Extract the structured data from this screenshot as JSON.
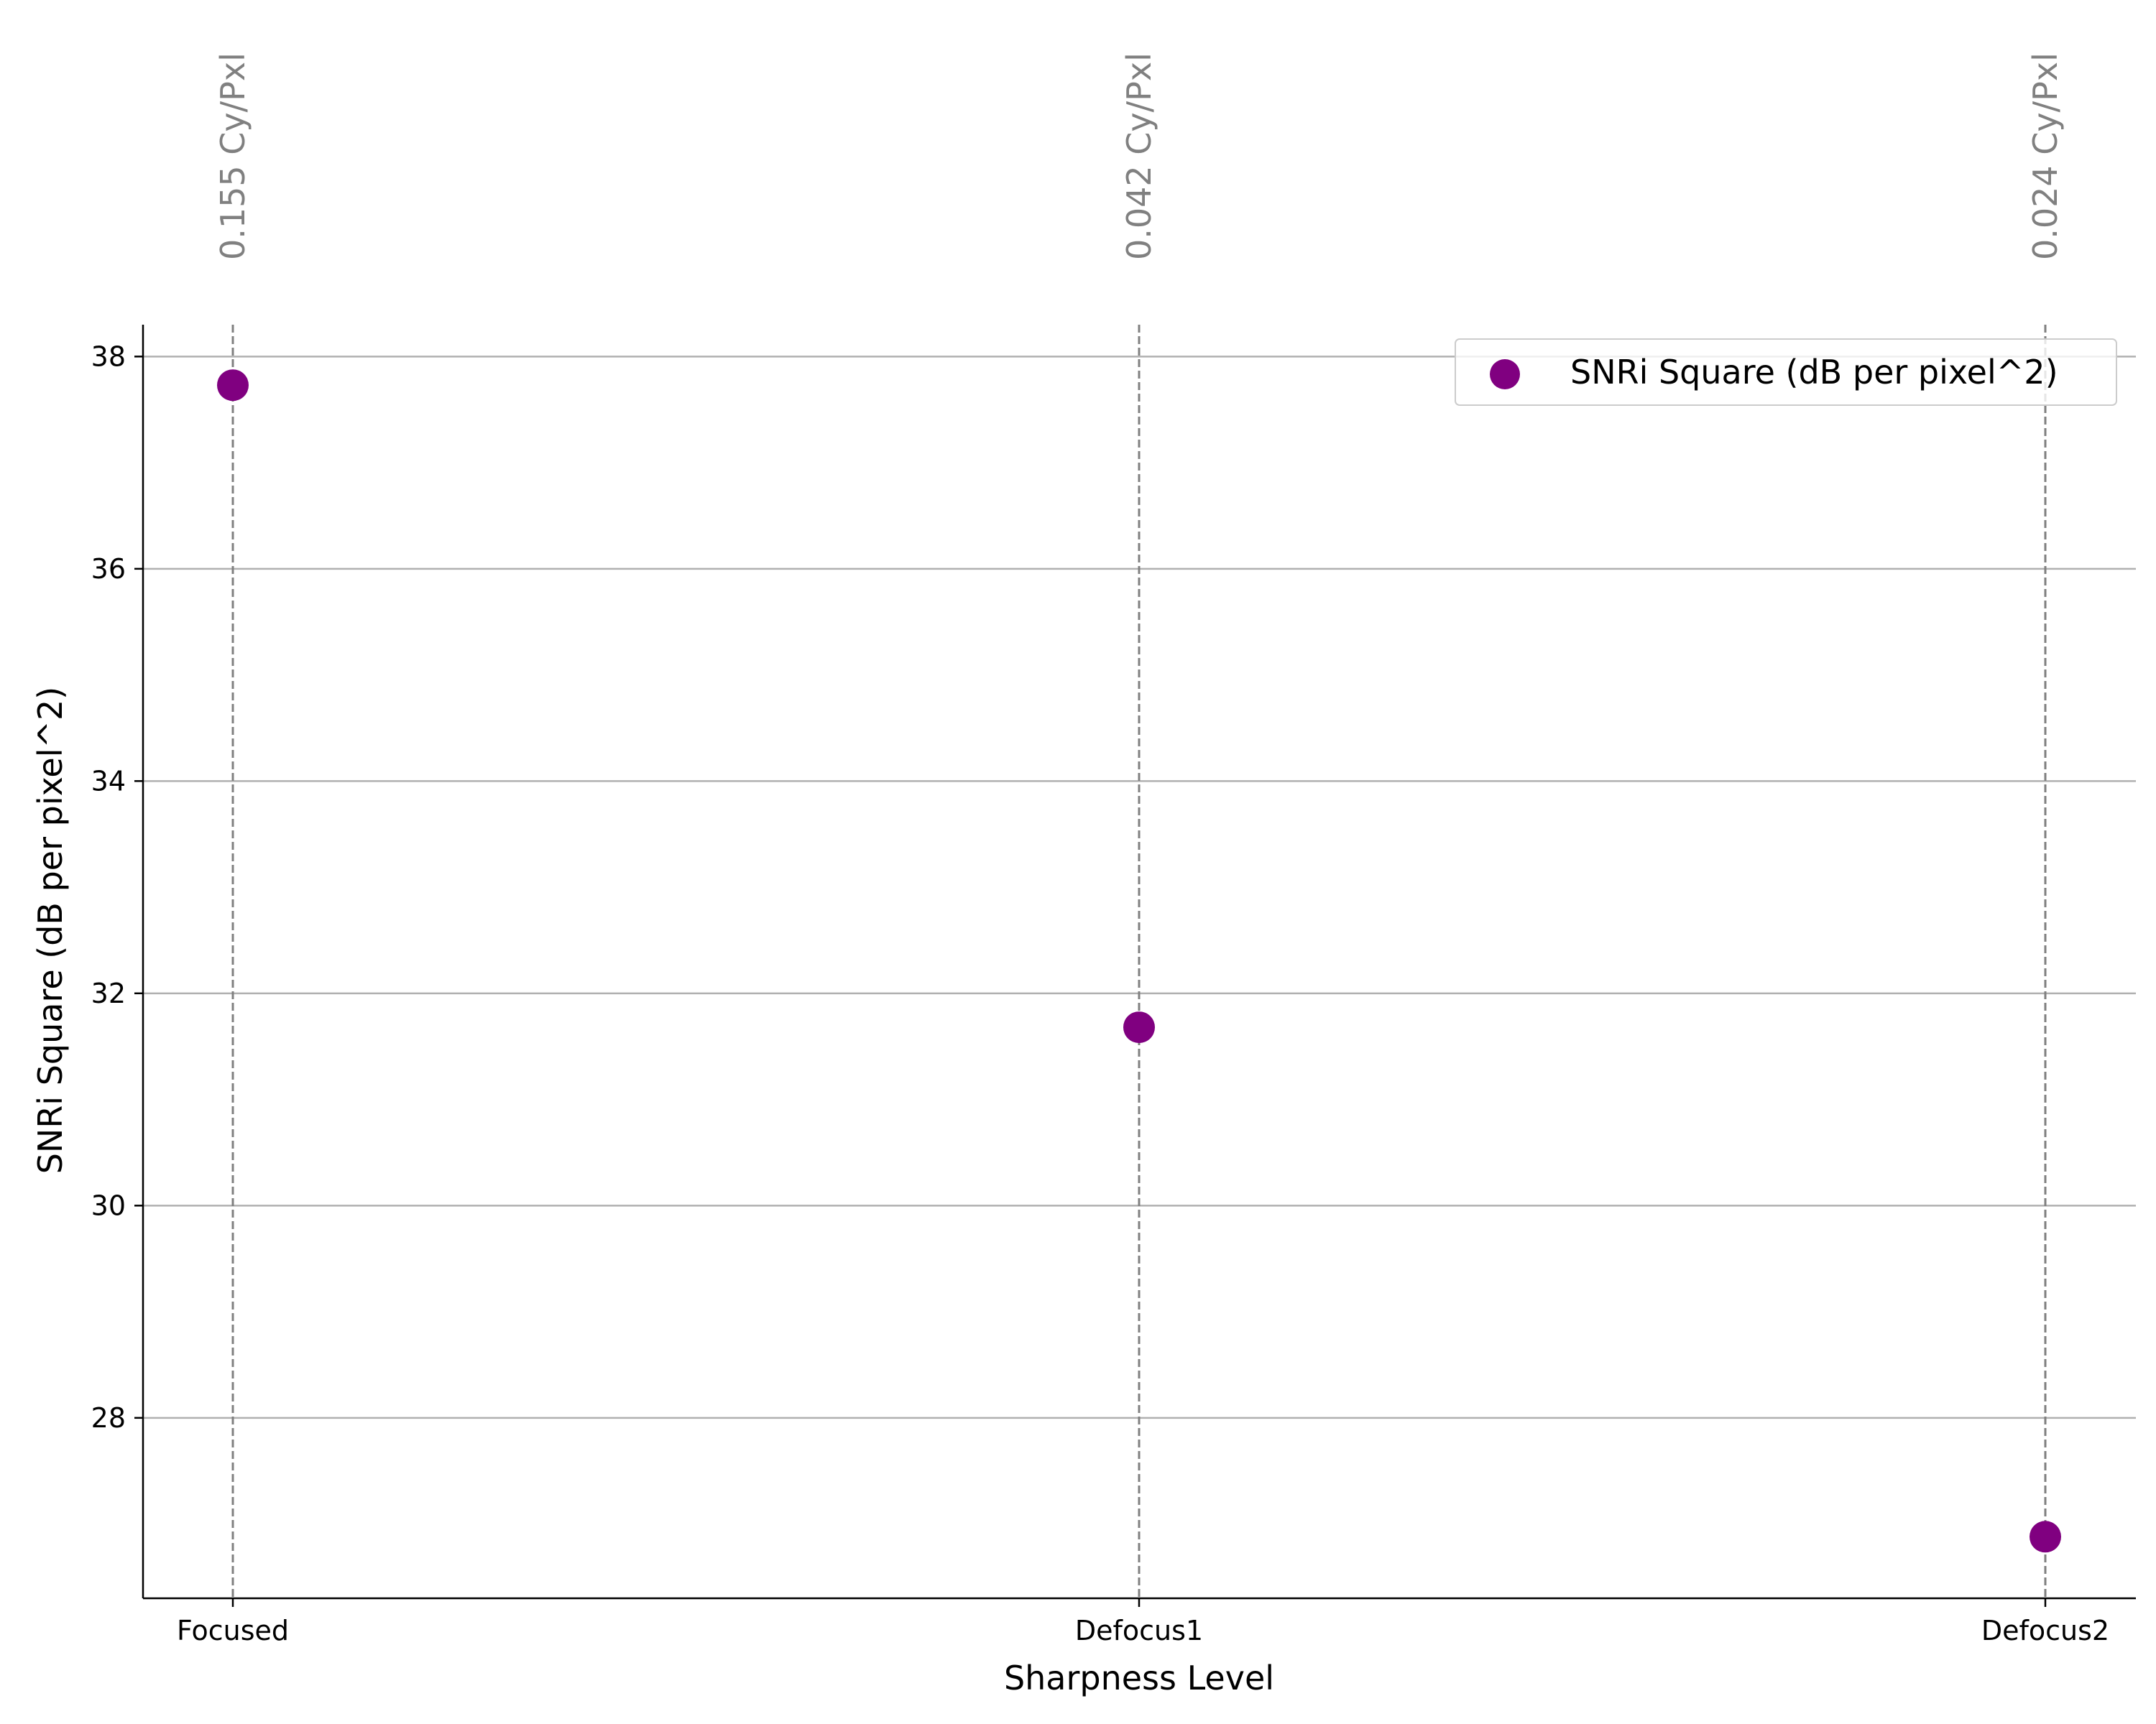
{
  "chart_data": {
    "type": "scatter",
    "title": "",
    "xlabel": "Sharpness Level",
    "ylabel": "SNRi Square (dB per pixel^2)",
    "categories": [
      "Focused",
      "Defocus1",
      "Defocus2"
    ],
    "series": [
      {
        "name": "SNRi Square (dB per pixel^2)",
        "values": [
          37.73,
          31.68,
          26.88
        ],
        "color": "#800080"
      }
    ],
    "annotations": [
      "0.155 Cy/Pxl",
      "0.042 Cy/Pxl",
      "0.024 Cy/Pxl"
    ],
    "ylim": [
      26.3,
      38.3
    ],
    "yticks": [
      28,
      30,
      32,
      34,
      36,
      38
    ],
    "grid": "horizontal",
    "vlines": "dashed at each category",
    "legend": "top-right",
    "colors": {
      "grid": "#b0b0b0",
      "vline": "#808080",
      "annotation": "#808080",
      "marker": "#800080"
    }
  }
}
